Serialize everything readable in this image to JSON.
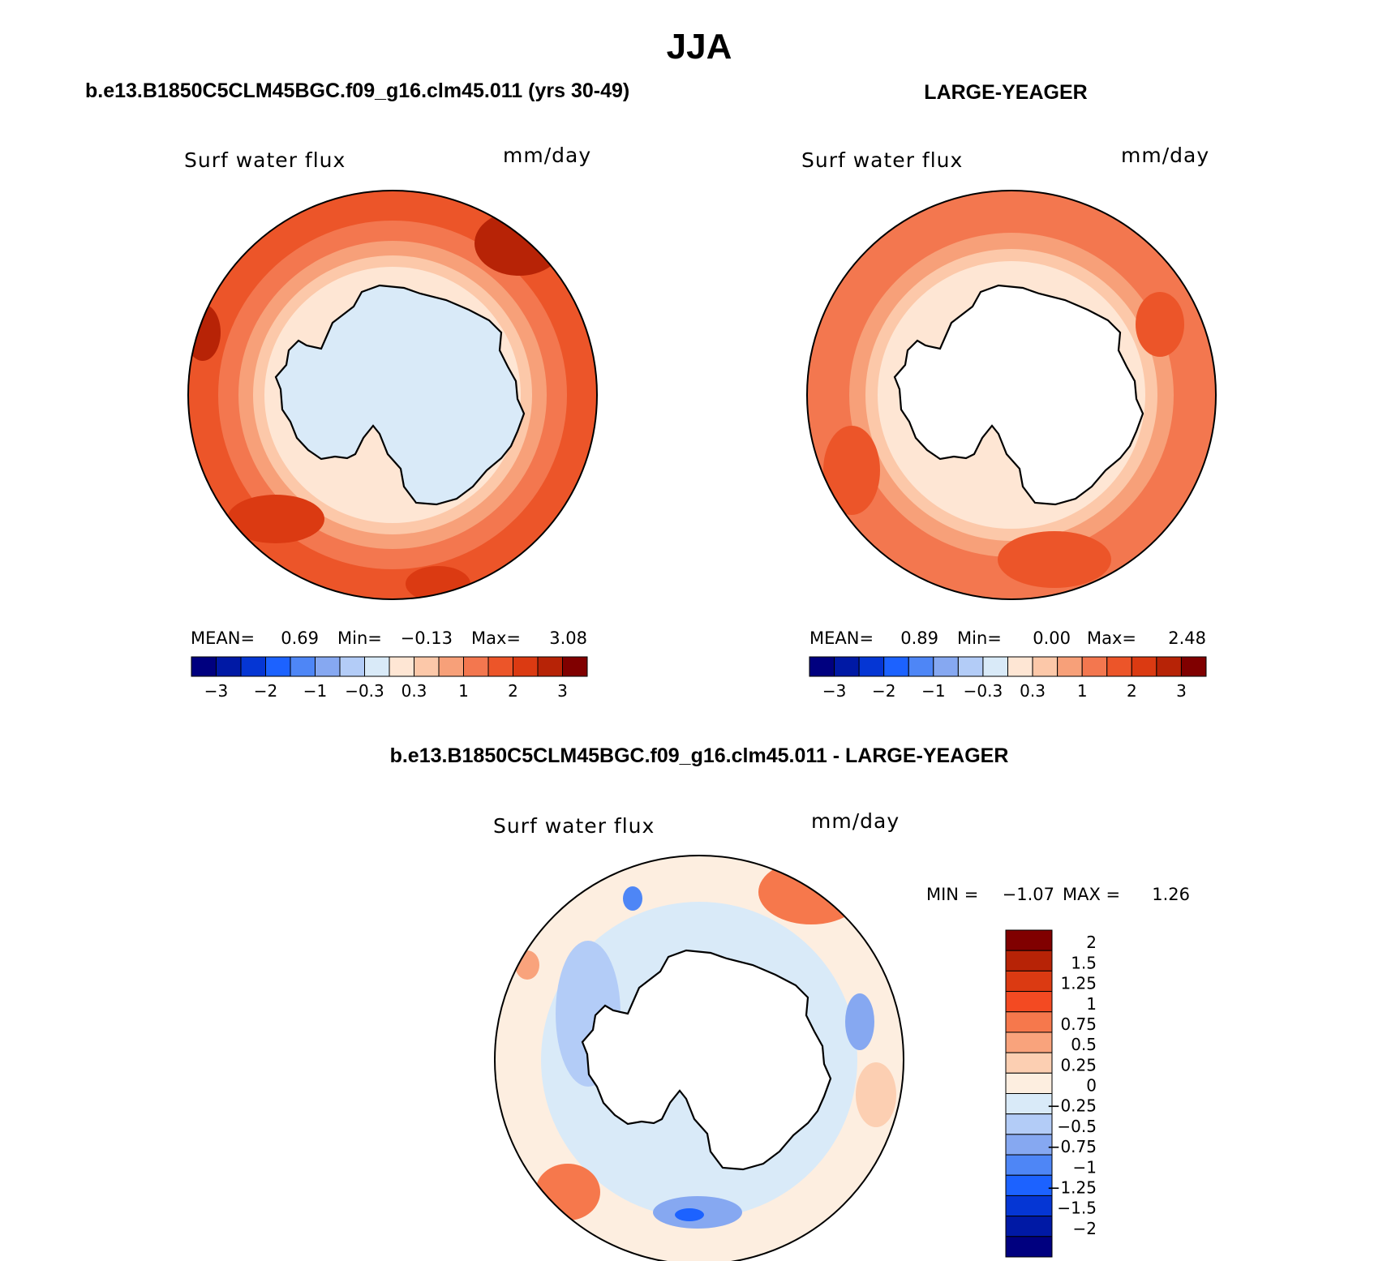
{
  "figure": {
    "title": "JJA",
    "season": "JJA"
  },
  "panels": [
    {
      "heading": "b.e13.B1850C5CLM45BGC.f09_g16.clm45.011 (yrs 30-49)",
      "variable": "Surf water flux",
      "units": "mm/day",
      "stats": {
        "mean_label": "MEAN=",
        "mean": "0.69",
        "min_label": "Min=",
        "min": "−0.13",
        "max_label": "Max=",
        "max": "3.08"
      },
      "land_fill": "#d9eaf8"
    },
    {
      "heading": "LARGE-YEAGER",
      "variable": "Surf water flux",
      "units": "mm/day",
      "stats": {
        "mean_label": "MEAN=",
        "mean": "0.89",
        "min_label": "Min=",
        "min": "0.00",
        "max_label": "Max=",
        "max": "2.48"
      },
      "land_fill": "#ffffff"
    },
    {
      "heading": "b.e13.B1850C5CLM45BGC.f09_g16.clm45.011 - LARGE-YEAGER",
      "variable": "Surf water flux",
      "units": "mm/day",
      "minmax": {
        "min_label": "MIN =",
        "min": "−1.07",
        "max_label": "MAX =",
        "max": "1.26"
      },
      "land_fill": "#ffffff"
    }
  ],
  "chart_data": [
    {
      "type": "heatmap",
      "projection": "south polar stereographic",
      "title": "b.e13.B1850C5CLM45BGC.f09_g16.clm45.011 (yrs 30-49)",
      "variable": "Surf water flux",
      "units": "mm/day",
      "mean": 0.69,
      "min": -0.13,
      "max": 3.08,
      "colorbar": {
        "orientation": "horizontal",
        "tick_labels": [
          "−3",
          "−2",
          "−1",
          "−0.3",
          "0.3",
          "1",
          "2",
          "3"
        ],
        "colors": [
          "#00007f",
          "#0019a5",
          "#0536d4",
          "#1c62ff",
          "#4e86f6",
          "#86a8f1",
          "#b3ccf7",
          "#d9eaf8",
          "#fee6d4",
          "#fcc8a9",
          "#f7a079",
          "#f3774f",
          "#ec5529",
          "#db3a12",
          "#b72306",
          "#800000"
        ]
      },
      "rings": [
        {
          "band": "0.3 to 1",
          "color": "#fee6d4"
        },
        {
          "band": "1 to 1.5",
          "color": "#fcc8a9"
        },
        {
          "band": "1.5 to 2",
          "color": "#f7a079"
        },
        {
          "band": "2 to 2.5",
          "color": "#f3774f"
        },
        {
          "band": "2.5 to 3",
          "color": "#ec5529"
        }
      ]
    },
    {
      "type": "heatmap",
      "projection": "south polar stereographic",
      "title": "LARGE-YEAGER",
      "variable": "Surf water flux",
      "units": "mm/day",
      "mean": 0.89,
      "min": 0.0,
      "max": 2.48,
      "colorbar": {
        "orientation": "horizontal",
        "tick_labels": [
          "−3",
          "−2",
          "−1",
          "−0.3",
          "0.3",
          "1",
          "2",
          "3"
        ],
        "colors": [
          "#00007f",
          "#0019a5",
          "#0536d4",
          "#1c62ff",
          "#4e86f6",
          "#86a8f1",
          "#b3ccf7",
          "#d9eaf8",
          "#fee6d4",
          "#fcc8a9",
          "#f7a079",
          "#f3774f",
          "#ec5529",
          "#db3a12",
          "#b72306",
          "#800000"
        ]
      },
      "rings": [
        {
          "band": "0.3 to 1",
          "color": "#fee6d4"
        },
        {
          "band": "1 to 1.5",
          "color": "#fcc8a9"
        },
        {
          "band": "1.5 to 2",
          "color": "#f7a079"
        },
        {
          "band": "2 to 2.5",
          "color": "#f3774f"
        }
      ]
    },
    {
      "type": "heatmap",
      "projection": "south polar stereographic",
      "title": "b.e13.B1850C5CLM45BGC.f09_g16.clm45.011 - LARGE-YEAGER",
      "variable": "Surf water flux",
      "units": "mm/day",
      "min": -1.07,
      "max": 1.26,
      "colorbar": {
        "orientation": "vertical",
        "tick_labels": [
          "2",
          "1.5",
          "1.25",
          "1",
          "0.75",
          "0.5",
          "0.25",
          "0",
          "−0.25",
          "−0.5",
          "−0.75",
          "−1",
          "−1.25",
          "−1.5",
          "−2"
        ],
        "colors": [
          "#800000",
          "#b72306",
          "#db3a12",
          "#f34a22",
          "#f6784c",
          "#f9a37c",
          "#fccfb2",
          "#fdeee0",
          "#d9eaf8",
          "#b3ccf7",
          "#86a8f1",
          "#4e86f6",
          "#1c62ff",
          "#0536d4",
          "#0019a5",
          "#00007f"
        ]
      },
      "rings": [
        {
          "band": "0 to 0.25",
          "color": "#fdeee0"
        },
        {
          "band": "-0.25 to 0",
          "color": "#d9eaf8"
        }
      ]
    }
  ]
}
